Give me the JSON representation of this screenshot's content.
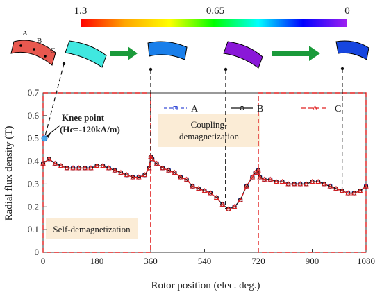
{
  "colorbar": {
    "labels": [
      "1.3",
      "0.65",
      "0"
    ],
    "gradient_colors": [
      "#ff0000",
      "#ffa500",
      "#ffff00",
      "#00ff00",
      "#00ffff",
      "#0000ff",
      "#a020f0"
    ]
  },
  "magnet_labels": [
    "A",
    "B",
    "C"
  ],
  "magnet_colors": [
    "#e8584f",
    "#40e8e0",
    "#1a7fea",
    "#8a18d8",
    "#1646e0"
  ],
  "arrow_color": "#1a9a3a",
  "annotations": {
    "knee_title": "Knee point",
    "knee_value": "(Hc=-120kA/m)",
    "coupling_line1": "Coupling-",
    "coupling_line2": "demagnetization",
    "self_demag": "Self-demagnetization"
  },
  "highlight_color": "#fbecd6",
  "chart_data": {
    "type": "line",
    "xlabel": "Rotor position (elec. deg.)",
    "ylabel": "Radial flux density (T)",
    "xlim": [
      0,
      1080
    ],
    "ylim": [
      0,
      0.7
    ],
    "xticks": [
      0,
      180,
      360,
      540,
      720,
      900,
      1080
    ],
    "yticks": [
      0,
      0.1,
      0.2,
      0.3,
      0.4,
      0.5,
      0.6,
      0.7
    ],
    "x": [
      0,
      20,
      40,
      60,
      80,
      100,
      120,
      140,
      160,
      180,
      200,
      220,
      240,
      260,
      280,
      300,
      320,
      340,
      355,
      360,
      365,
      380,
      400,
      420,
      440,
      460,
      480,
      500,
      520,
      540,
      560,
      580,
      600,
      620,
      640,
      660,
      680,
      700,
      710,
      720,
      725,
      740,
      760,
      780,
      800,
      820,
      840,
      860,
      880,
      900,
      920,
      940,
      960,
      980,
      1000,
      1020,
      1040,
      1060,
      1080
    ],
    "series": [
      {
        "name": "A",
        "color": "#3a4fd8",
        "marker": "square",
        "values": [
          0.39,
          0.41,
          0.39,
          0.38,
          0.37,
          0.37,
          0.37,
          0.37,
          0.37,
          0.38,
          0.38,
          0.37,
          0.36,
          0.35,
          0.34,
          0.33,
          0.33,
          0.34,
          0.37,
          0.42,
          0.41,
          0.39,
          0.37,
          0.36,
          0.35,
          0.33,
          0.32,
          0.29,
          0.28,
          0.27,
          0.26,
          0.24,
          0.21,
          0.19,
          0.2,
          0.23,
          0.29,
          0.33,
          0.35,
          0.36,
          0.33,
          0.32,
          0.32,
          0.31,
          0.31,
          0.3,
          0.3,
          0.3,
          0.3,
          0.31,
          0.31,
          0.3,
          0.29,
          0.28,
          0.27,
          0.26,
          0.26,
          0.27,
          0.29
        ]
      },
      {
        "name": "B",
        "color": "#111111",
        "marker": "circle",
        "values": [
          0.39,
          0.41,
          0.39,
          0.38,
          0.37,
          0.37,
          0.37,
          0.37,
          0.37,
          0.38,
          0.38,
          0.37,
          0.36,
          0.35,
          0.34,
          0.33,
          0.33,
          0.34,
          0.37,
          0.42,
          0.41,
          0.39,
          0.37,
          0.36,
          0.35,
          0.33,
          0.32,
          0.29,
          0.28,
          0.27,
          0.26,
          0.24,
          0.21,
          0.19,
          0.2,
          0.23,
          0.29,
          0.33,
          0.35,
          0.36,
          0.33,
          0.32,
          0.32,
          0.31,
          0.31,
          0.3,
          0.3,
          0.3,
          0.3,
          0.31,
          0.31,
          0.3,
          0.29,
          0.28,
          0.27,
          0.26,
          0.26,
          0.27,
          0.29
        ]
      },
      {
        "name": "C",
        "color": "#e02020",
        "marker": "triangle",
        "values": [
          0.39,
          0.41,
          0.39,
          0.38,
          0.37,
          0.37,
          0.37,
          0.37,
          0.37,
          0.38,
          0.38,
          0.37,
          0.36,
          0.35,
          0.34,
          0.33,
          0.33,
          0.34,
          0.37,
          0.42,
          0.41,
          0.39,
          0.37,
          0.36,
          0.35,
          0.33,
          0.32,
          0.29,
          0.28,
          0.27,
          0.26,
          0.24,
          0.21,
          0.19,
          0.2,
          0.23,
          0.29,
          0.33,
          0.35,
          0.36,
          0.33,
          0.32,
          0.32,
          0.31,
          0.31,
          0.3,
          0.3,
          0.3,
          0.3,
          0.31,
          0.31,
          0.3,
          0.29,
          0.28,
          0.27,
          0.26,
          0.26,
          0.27,
          0.29
        ]
      }
    ],
    "knee_point": {
      "x": 0,
      "y": 0.5
    },
    "legend": "top"
  }
}
